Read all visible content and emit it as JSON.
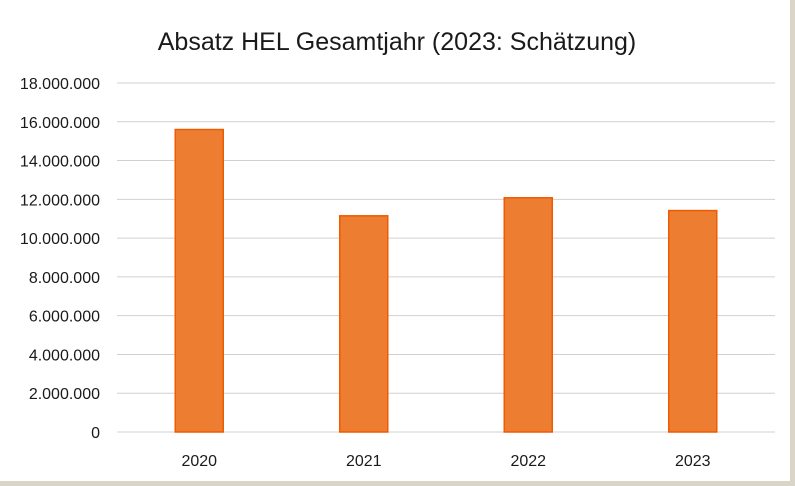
{
  "chart_data": {
    "type": "bar",
    "title": "Absatz HEL Gesamtjahr (2023: Schätzung)",
    "xlabel": "",
    "ylabel": "",
    "categories": [
      "2020",
      "2021",
      "2022",
      "2023"
    ],
    "values": [
      15600000,
      11150000,
      12080000,
      11420000
    ],
    "ylim": [
      0,
      18000000
    ],
    "yticks": [
      0,
      2000000,
      4000000,
      6000000,
      8000000,
      10000000,
      12000000,
      14000000,
      16000000,
      18000000
    ],
    "ytick_labels": [
      "0",
      "2.000.000",
      "4.000.000",
      "6.000.000",
      "8.000.000",
      "10.000.000",
      "12.000.000",
      "14.000.000",
      "16.000.000",
      "18.000.000"
    ],
    "grid": true,
    "legend": "none",
    "bar_color": "#ed7d31",
    "bar_edge_color": "#f05a00"
  }
}
